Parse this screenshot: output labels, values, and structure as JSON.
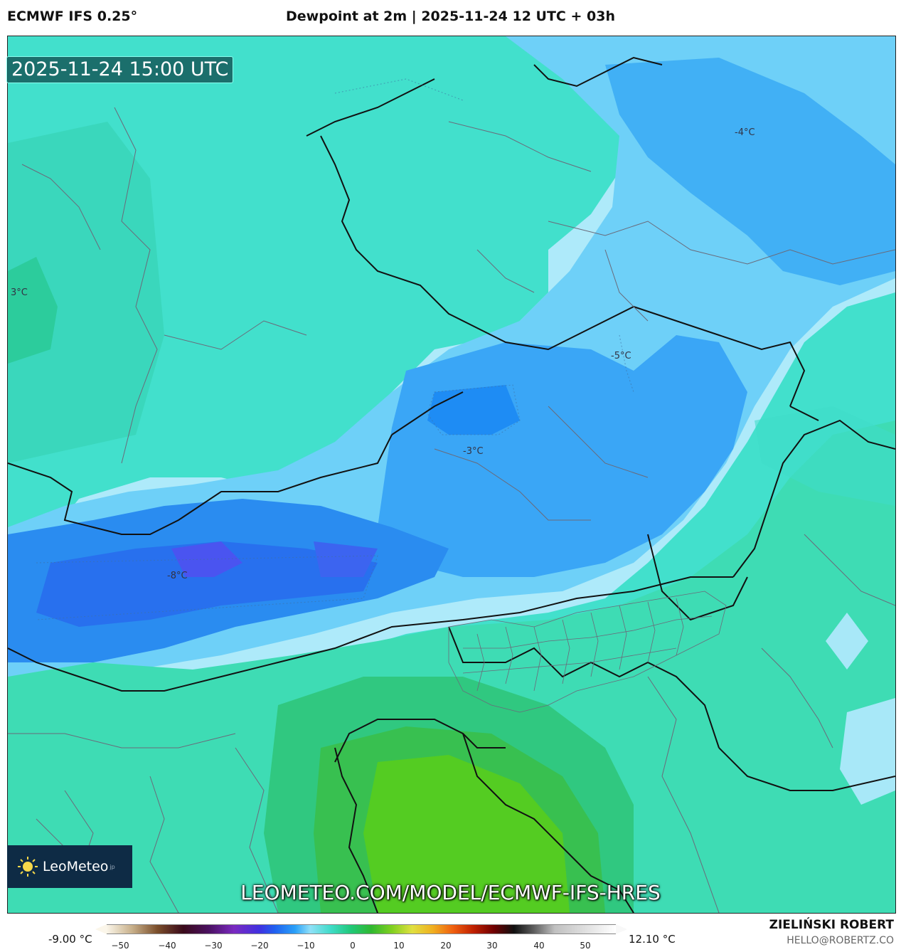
{
  "header": {
    "model": "ECMWF IFS 0.25°",
    "title": "Dewpoint at 2m | 2025-11-24 12 UTC + 03h"
  },
  "map": {
    "timestamp": "2025-11-24 15:00 UTC",
    "labels": [
      "3°C",
      "-4°C",
      "-5°C",
      "-3°C",
      "-8°C"
    ],
    "url": "LEOMETEO.COM/MODEL/ECMWF-IFS-HRES"
  },
  "logo": {
    "name": "LeoMeteo",
    "suffix": "jp",
    "icon": "sun-icon"
  },
  "scale": {
    "min": "-9.00 °C",
    "max": "12.10 °C",
    "ticks": [
      "−50",
      "−40",
      "−30",
      "−20",
      "−10",
      "0",
      "10",
      "20",
      "30",
      "40",
      "50"
    ]
  },
  "footer": {
    "author": "ZIELIŃSKI ROBERT",
    "email": "HELLO@ROBERTZ.CO"
  },
  "colors": {
    "teal": "#40dcc8",
    "mint": "#3ee8c8",
    "light_blue": "#a8e8f8",
    "sky": "#6ccff8",
    "blue": "#2aa0f8",
    "deep_blue": "#2070f0",
    "violet": "#4050f0",
    "green": "#30c060",
    "bright_green": "#50cc20"
  }
}
